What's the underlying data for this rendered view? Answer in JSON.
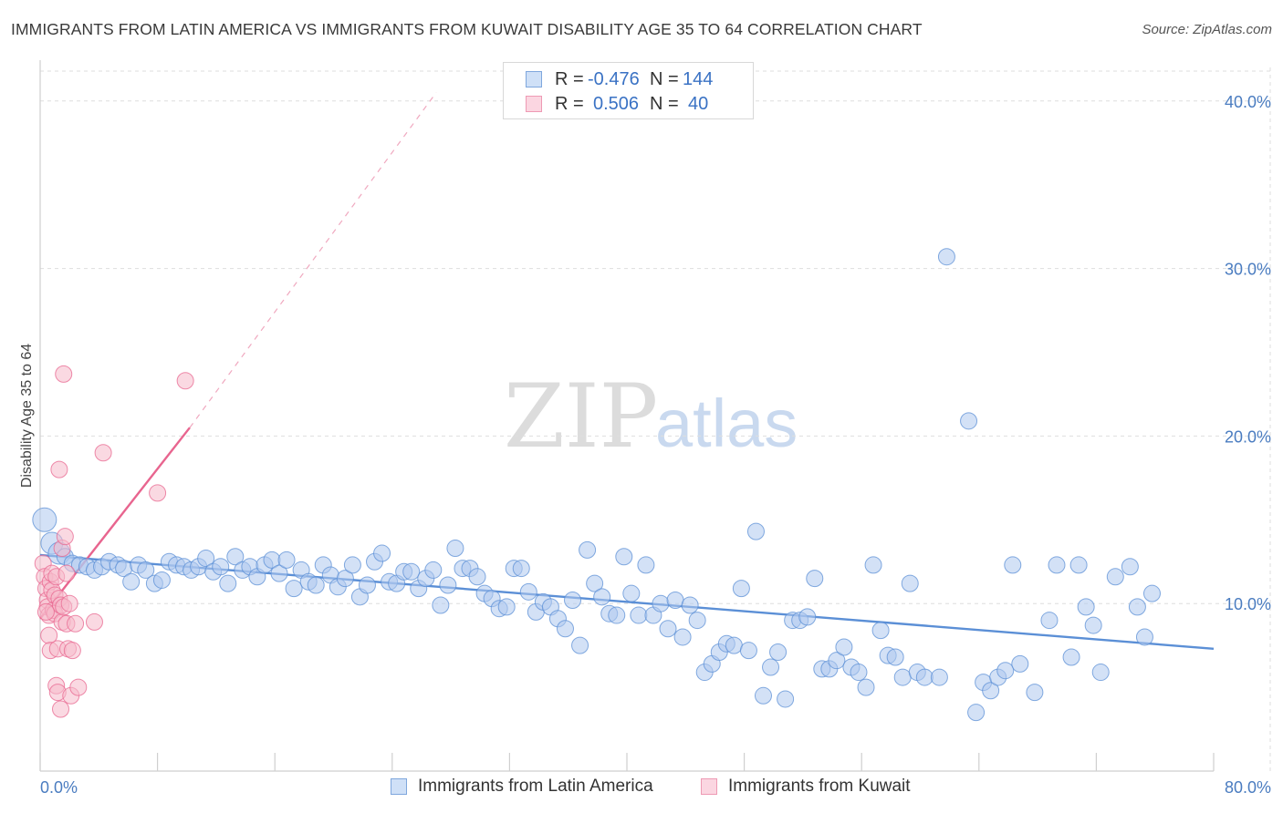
{
  "header": {
    "title": "IMMIGRANTS FROM LATIN AMERICA VS IMMIGRANTS FROM KUWAIT DISABILITY AGE 35 TO 64 CORRELATION CHART",
    "source": "Source: ZipAtlas.com"
  },
  "legend": {
    "r_label": "R =",
    "n_label": "N =",
    "rows": [
      {
        "r": "-0.476",
        "n": "144",
        "color": "#aec8ee"
      },
      {
        "r": "0.506",
        "n": "40",
        "color": "#f6b9cb"
      }
    ]
  },
  "bottom_legend": [
    {
      "label": "Immigrants from Latin America",
      "color": "#aec8ee"
    },
    {
      "label": "Immigrants from Kuwait",
      "color": "#f6b9cb"
    }
  ],
  "watermark": {
    "zip": "ZIP",
    "atlas": "atlas"
  },
  "chart_data": {
    "type": "scatter",
    "title": "IMMIGRANTS FROM LATIN AMERICA VS IMMIGRANTS FROM KUWAIT DISABILITY AGE 35 TO 64 CORRELATION CHART",
    "ylabel": "Disability Age 35 to 64",
    "xlabel": "",
    "xlim": [
      0,
      80
    ],
    "ylim": [
      0,
      42
    ],
    "x_tick_labels": [
      "0.0%",
      "80.0%"
    ],
    "y_ticks": [
      10,
      20,
      30,
      40
    ],
    "y_tick_labels": [
      "10.0%",
      "20.0%",
      "30.0%",
      "40.0%"
    ],
    "grid": true,
    "series": [
      {
        "name": "Immigrants from Latin America",
        "color": "#5b8fd6",
        "fill": "#aec8ee",
        "trend": {
          "x": [
            0,
            80
          ],
          "y": [
            12.9,
            7.3
          ],
          "style": "solid"
        },
        "points": [
          [
            0.3,
            15.0
          ],
          [
            0.8,
            13.6
          ],
          [
            1.3,
            13.0
          ],
          [
            1.7,
            12.8
          ],
          [
            2.2,
            12.4
          ],
          [
            2.7,
            12.3
          ],
          [
            3.2,
            12.2
          ],
          [
            3.7,
            12.0
          ],
          [
            4.2,
            12.2
          ],
          [
            4.7,
            12.5
          ],
          [
            5.3,
            12.3
          ],
          [
            5.7,
            12.1
          ],
          [
            6.2,
            11.3
          ],
          [
            6.7,
            12.3
          ],
          [
            7.2,
            12.0
          ],
          [
            7.8,
            11.2
          ],
          [
            8.3,
            11.4
          ],
          [
            8.8,
            12.5
          ],
          [
            9.3,
            12.3
          ],
          [
            9.8,
            12.2
          ],
          [
            10.3,
            12.0
          ],
          [
            10.8,
            12.2
          ],
          [
            11.3,
            12.7
          ],
          [
            11.8,
            11.9
          ],
          [
            12.3,
            12.2
          ],
          [
            12.8,
            11.2
          ],
          [
            13.3,
            12.8
          ],
          [
            13.8,
            12.0
          ],
          [
            14.3,
            12.2
          ],
          [
            14.8,
            11.6
          ],
          [
            15.3,
            12.3
          ],
          [
            15.8,
            12.6
          ],
          [
            16.3,
            11.8
          ],
          [
            16.8,
            12.6
          ],
          [
            17.3,
            10.9
          ],
          [
            17.8,
            12.0
          ],
          [
            18.3,
            11.3
          ],
          [
            18.8,
            11.1
          ],
          [
            19.3,
            12.3
          ],
          [
            19.8,
            11.7
          ],
          [
            20.3,
            11.0
          ],
          [
            20.8,
            11.5
          ],
          [
            21.3,
            12.3
          ],
          [
            21.8,
            10.4
          ],
          [
            22.3,
            11.1
          ],
          [
            22.8,
            12.5
          ],
          [
            23.3,
            13.0
          ],
          [
            23.8,
            11.3
          ],
          [
            24.3,
            11.2
          ],
          [
            24.8,
            11.9
          ],
          [
            25.3,
            11.9
          ],
          [
            25.8,
            10.9
          ],
          [
            26.3,
            11.5
          ],
          [
            26.8,
            12.0
          ],
          [
            27.3,
            9.9
          ],
          [
            27.8,
            11.1
          ],
          [
            28.3,
            13.3
          ],
          [
            28.8,
            12.1
          ],
          [
            29.3,
            12.1
          ],
          [
            29.8,
            11.6
          ],
          [
            30.3,
            10.6
          ],
          [
            30.8,
            10.3
          ],
          [
            31.3,
            9.7
          ],
          [
            31.8,
            9.8
          ],
          [
            32.3,
            12.1
          ],
          [
            32.8,
            12.1
          ],
          [
            33.3,
            10.7
          ],
          [
            33.8,
            9.5
          ],
          [
            34.3,
            10.1
          ],
          [
            34.8,
            9.8
          ],
          [
            35.3,
            9.1
          ],
          [
            35.8,
            8.5
          ],
          [
            36.3,
            10.2
          ],
          [
            36.8,
            7.5
          ],
          [
            37.3,
            13.2
          ],
          [
            37.8,
            11.2
          ],
          [
            38.3,
            10.4
          ],
          [
            38.8,
            9.4
          ],
          [
            39.3,
            9.3
          ],
          [
            39.8,
            12.8
          ],
          [
            40.3,
            10.6
          ],
          [
            40.8,
            9.3
          ],
          [
            41.3,
            12.3
          ],
          [
            41.8,
            9.3
          ],
          [
            42.3,
            10.0
          ],
          [
            42.8,
            8.5
          ],
          [
            43.3,
            10.2
          ],
          [
            43.8,
            8.0
          ],
          [
            44.3,
            9.9
          ],
          [
            44.8,
            9.0
          ],
          [
            45.3,
            5.9
          ],
          [
            45.8,
            6.4
          ],
          [
            46.3,
            7.1
          ],
          [
            46.8,
            7.6
          ],
          [
            47.3,
            7.5
          ],
          [
            47.8,
            10.9
          ],
          [
            48.3,
            7.2
          ],
          [
            48.8,
            14.3
          ],
          [
            49.3,
            4.5
          ],
          [
            49.8,
            6.2
          ],
          [
            50.3,
            7.1
          ],
          [
            50.8,
            4.3
          ],
          [
            51.3,
            9.0
          ],
          [
            51.8,
            9.0
          ],
          [
            52.3,
            9.2
          ],
          [
            52.8,
            11.5
          ],
          [
            53.3,
            6.1
          ],
          [
            53.8,
            6.1
          ],
          [
            54.3,
            6.6
          ],
          [
            54.8,
            7.4
          ],
          [
            55.3,
            6.2
          ],
          [
            55.8,
            5.9
          ],
          [
            56.3,
            5.0
          ],
          [
            56.8,
            12.3
          ],
          [
            57.3,
            8.4
          ],
          [
            57.8,
            6.9
          ],
          [
            58.3,
            6.8
          ],
          [
            58.8,
            5.6
          ],
          [
            59.3,
            11.2
          ],
          [
            59.8,
            5.9
          ],
          [
            60.3,
            5.6
          ],
          [
            61.3,
            5.6
          ],
          [
            61.8,
            30.7
          ],
          [
            63.3,
            20.9
          ],
          [
            63.8,
            3.5
          ],
          [
            64.3,
            5.3
          ],
          [
            64.8,
            4.8
          ],
          [
            65.3,
            5.6
          ],
          [
            65.8,
            6.0
          ],
          [
            66.3,
            12.3
          ],
          [
            66.8,
            6.4
          ],
          [
            67.8,
            4.7
          ],
          [
            68.8,
            9.0
          ],
          [
            69.3,
            12.3
          ],
          [
            70.3,
            6.8
          ],
          [
            70.8,
            12.3
          ],
          [
            71.3,
            9.8
          ],
          [
            71.8,
            8.7
          ],
          [
            72.3,
            5.9
          ],
          [
            73.3,
            11.6
          ],
          [
            74.3,
            12.2
          ],
          [
            74.8,
            9.8
          ],
          [
            75.3,
            8.0
          ],
          [
            75.8,
            10.6
          ]
        ]
      },
      {
        "name": "Immigrants from Kuwait",
        "color": "#e8658f",
        "fill": "#f6b9cb",
        "trend": {
          "x": [
            0,
            10.2
          ],
          "y": [
            9.1,
            20.5
          ],
          "style": "solid",
          "extended": {
            "x": [
              10.2,
              27
            ],
            "y": [
              20.5,
              40.5
            ],
            "style": "dashed"
          }
        },
        "points": [
          [
            0.2,
            12.4
          ],
          [
            0.3,
            11.6
          ],
          [
            0.4,
            10.9
          ],
          [
            0.5,
            10.2
          ],
          [
            0.5,
            9.8
          ],
          [
            0.6,
            9.3
          ],
          [
            0.6,
            8.1
          ],
          [
            0.7,
            11.3
          ],
          [
            0.7,
            7.2
          ],
          [
            0.8,
            10.8
          ],
          [
            0.8,
            11.8
          ],
          [
            0.9,
            9.6
          ],
          [
            1.0,
            9.4
          ],
          [
            1.0,
            10.5
          ],
          [
            1.1,
            5.1
          ],
          [
            1.1,
            11.6
          ],
          [
            1.2,
            7.3
          ],
          [
            1.2,
            4.7
          ],
          [
            1.3,
            10.3
          ],
          [
            1.3,
            18.0
          ],
          [
            1.4,
            9.9
          ],
          [
            1.4,
            3.7
          ],
          [
            1.5,
            13.3
          ],
          [
            1.5,
            8.9
          ],
          [
            1.6,
            23.7
          ],
          [
            1.6,
            9.8
          ],
          [
            1.7,
            14.0
          ],
          [
            1.8,
            8.8
          ],
          [
            1.8,
            11.8
          ],
          [
            1.9,
            7.3
          ],
          [
            2.0,
            10.0
          ],
          [
            2.1,
            4.5
          ],
          [
            2.2,
            7.2
          ],
          [
            2.4,
            8.8
          ],
          [
            2.6,
            5.0
          ],
          [
            3.7,
            8.9
          ],
          [
            4.3,
            19.0
          ],
          [
            8.0,
            16.6
          ],
          [
            9.9,
            23.3
          ],
          [
            0.4,
            9.5
          ]
        ]
      }
    ]
  }
}
